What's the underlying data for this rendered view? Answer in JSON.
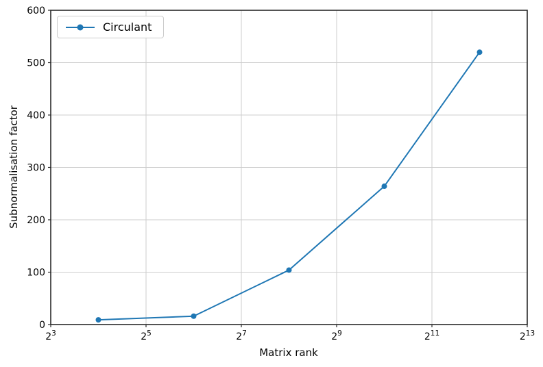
{
  "style": {
    "background_color": "#ffffff",
    "grid_color": "#cdcdcd",
    "spine_color": "#2a2a2a",
    "text_color": "#000000"
  },
  "chart_data": {
    "type": "line",
    "title": "",
    "xlabel": "Matrix rank",
    "ylabel": "Subnormalisation factor",
    "x_scale": "log2",
    "x_tick_base": "2",
    "x_ticks_exponents": [
      3,
      5,
      7,
      9,
      11,
      13
    ],
    "xlim_exponents": [
      3,
      13
    ],
    "y_ticks": [
      0,
      100,
      200,
      300,
      400,
      500,
      600
    ],
    "ylim": [
      0,
      600
    ],
    "grid": true,
    "legend_position": "upper left",
    "x": [
      16,
      64,
      256,
      1024,
      4096
    ],
    "x_exponents": [
      4,
      6,
      8,
      10,
      12
    ],
    "series": [
      {
        "name": "Circulant",
        "color": "#1f77b4",
        "marker": "circle",
        "values": [
          9,
          16,
          104,
          264,
          520
        ]
      }
    ]
  }
}
